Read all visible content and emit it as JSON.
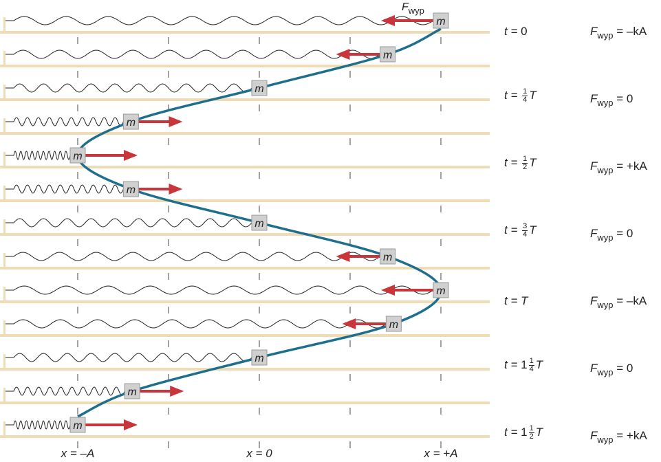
{
  "mass_label": "m",
  "force_symbol": "F",
  "force_subscript": "wyp",
  "colors": {
    "floor": "#f0dcb4",
    "curve": "#1e6f8e",
    "arrow": "#c8363c",
    "mass": "#d0d0d0",
    "spring": "#222222"
  },
  "rows": [
    {
      "position": 1,
      "arrow": "left"
    },
    {
      "position": 0.707,
      "arrow": "left"
    },
    {
      "position": 0,
      "arrow": "none"
    },
    {
      "position": -0.707,
      "arrow": "right"
    },
    {
      "position": -1,
      "arrow": "right"
    },
    {
      "position": -0.707,
      "arrow": "right"
    },
    {
      "position": 0,
      "arrow": "none"
    },
    {
      "position": 0.707,
      "arrow": "left"
    },
    {
      "position": 1,
      "arrow": "left"
    },
    {
      "position": 0.74,
      "arrow": "left"
    },
    {
      "position": 0,
      "arrow": "none"
    },
    {
      "position": -0.7,
      "arrow": "right"
    },
    {
      "position": -1,
      "arrow": "right"
    }
  ],
  "time_labels": [
    {
      "row": 0,
      "prefix": "t = ",
      "whole": "0",
      "num": "",
      "den": "",
      "suffix": ""
    },
    {
      "row": 2,
      "prefix": "t = ",
      "whole": "",
      "num": "1",
      "den": "4",
      "suffix": "T"
    },
    {
      "row": 4,
      "prefix": "t = ",
      "whole": "",
      "num": "1",
      "den": "2",
      "suffix": "T"
    },
    {
      "row": 6,
      "prefix": "t = ",
      "whole": "",
      "num": "3",
      "den": "4",
      "suffix": "T"
    },
    {
      "row": 8,
      "prefix": "t = ",
      "whole": "",
      "num": "",
      "den": "",
      "suffix": "T"
    },
    {
      "row": 10,
      "prefix": "t = ",
      "whole": "1",
      "num": "1",
      "den": "4",
      "suffix": "T"
    },
    {
      "row": 12,
      "prefix": "t = ",
      "whole": "1",
      "num": "1",
      "den": "2",
      "suffix": "T"
    }
  ],
  "force_labels": [
    {
      "row": 0,
      "value": " = –kA"
    },
    {
      "row": 2,
      "value": " = 0"
    },
    {
      "row": 4,
      "value": " = +kA"
    },
    {
      "row": 6,
      "value": " = 0"
    },
    {
      "row": 8,
      "value": " = –kA"
    },
    {
      "row": 10,
      "value": " = 0"
    },
    {
      "row": 12,
      "value": " = +kA"
    }
  ],
  "axis_labels": [
    "x = –A",
    "x = 0",
    "x = +A"
  ]
}
